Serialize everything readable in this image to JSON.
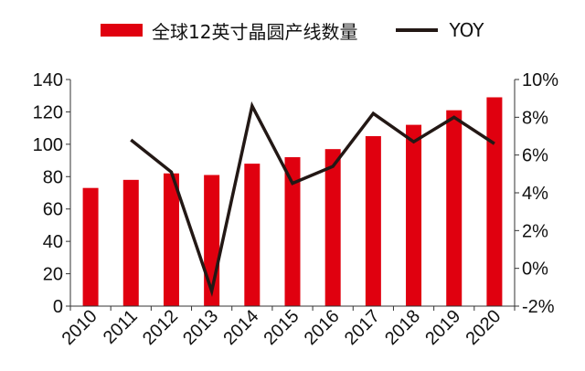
{
  "chart_data": {
    "type": "bar",
    "categories": [
      "2010",
      "2011",
      "2012",
      "2013",
      "2014",
      "2015",
      "2016",
      "2017",
      "2018",
      "2019",
      "2020"
    ],
    "series": [
      {
        "name": "全球12英寸晶圆产线数量",
        "kind": "bar",
        "axis": "left",
        "color": "#e0000f",
        "values": [
          73,
          78,
          82,
          81,
          88,
          92,
          97,
          105,
          112,
          121,
          129
        ]
      },
      {
        "name": "YOY",
        "kind": "line",
        "axis": "right",
        "color": "#231815",
        "values": [
          null,
          6.8,
          5.1,
          -1.2,
          8.6,
          4.5,
          5.4,
          8.2,
          6.7,
          8.0,
          6.6
        ]
      }
    ],
    "y_left": {
      "min": 0,
      "max": 140,
      "ticks": [
        "0",
        "20",
        "40",
        "60",
        "80",
        "100",
        "120",
        "140"
      ]
    },
    "y_right": {
      "min": -2,
      "max": 10,
      "ticks": [
        "-2%",
        "0%",
        "2%",
        "4%",
        "6%",
        "8%",
        "10%"
      ]
    },
    "legend_position": "top",
    "grid": false
  }
}
